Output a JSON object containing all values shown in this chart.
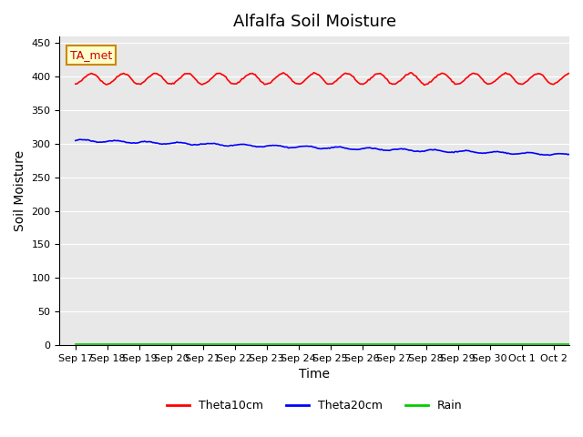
{
  "title": "Alfalfa Soil Moisture",
  "xlabel": "Time",
  "ylabel": "Soil Moisture",
  "annotation_text": "TA_met",
  "ylim": [
    0,
    460
  ],
  "yticks": [
    0,
    50,
    100,
    150,
    200,
    250,
    300,
    350,
    400,
    450
  ],
  "x_labels": [
    "Sep 17",
    "Sep 18",
    "Sep 19",
    "Sep 20",
    "Sep 21",
    "Sep 22",
    "Sep 23",
    "Sep 24",
    "Sep 25",
    "Sep 26",
    "Sep 27",
    "Sep 28",
    "Sep 29",
    "Sep 30",
    "Oct 1",
    "Oct 2"
  ],
  "theta10_color": "#ff0000",
  "theta20_color": "#0000ff",
  "rain_color": "#00cc00",
  "bg_color": "#e8e8e8",
  "legend_labels": [
    "Theta10cm",
    "Theta20cm",
    "Rain"
  ],
  "title_fontsize": 13,
  "axis_label_fontsize": 10,
  "tick_fontsize": 8
}
